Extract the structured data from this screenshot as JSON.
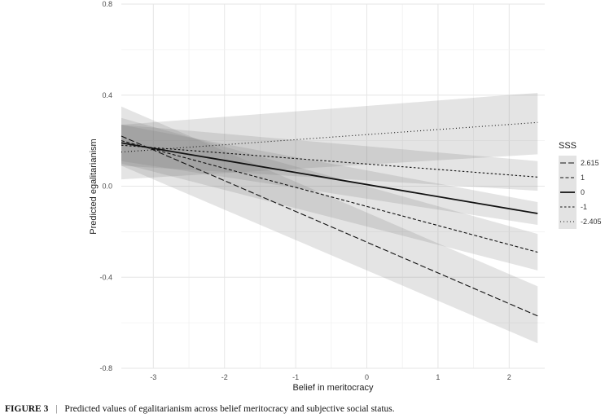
{
  "figure_caption": {
    "label": "FIGURE 3",
    "separator": "|",
    "text": "Predicted values of egalitarianism across belief meritocracy and subjective social status."
  },
  "chart_data": {
    "type": "line",
    "xlabel": "Belief in meritocracy",
    "ylabel": "Predicted egalitarianism",
    "xlim": [
      -3.45,
      2.5
    ],
    "ylim": [
      -0.8,
      0.8
    ],
    "x_ticks": [
      -3,
      -2,
      -1,
      0,
      1,
      2
    ],
    "x_tick_labels": [
      "-3",
      "-2",
      "-1",
      "0",
      "1",
      "2"
    ],
    "y_ticks": [
      -0.8,
      -0.4,
      0.0,
      0.4,
      0.8
    ],
    "y_tick_labels": [
      "-0.8",
      "-0.4",
      "0.0",
      "0.4",
      "0.8"
    ],
    "grid": true,
    "legend": {
      "title": "SSS",
      "placement": "right"
    },
    "x": [
      -3.45,
      2.4
    ],
    "series": [
      {
        "name": "2.615",
        "dash": "longdash",
        "values": [
          0.22,
          -0.57
        ],
        "ci_lower": [
          0.09,
          -0.69
        ],
        "ci_upper": [
          0.35,
          -0.44
        ]
      },
      {
        "name": "1",
        "dash": "dashed",
        "values": [
          0.2,
          -0.29
        ],
        "ci_lower": [
          0.1,
          -0.37
        ],
        "ci_upper": [
          0.3,
          -0.21
        ]
      },
      {
        "name": "0",
        "dash": "solid",
        "values": [
          0.19,
          -0.12
        ],
        "ci_lower": [
          0.11,
          -0.17
        ],
        "ci_upper": [
          0.27,
          -0.07
        ]
      },
      {
        "name": "-1",
        "dash": "shortdash",
        "values": [
          0.18,
          0.04
        ],
        "ci_lower": [
          0.09,
          -0.02
        ],
        "ci_upper": [
          0.27,
          0.11
        ]
      },
      {
        "name": "-2.405",
        "dash": "dotted",
        "values": [
          0.15,
          0.28
        ],
        "ci_lower": [
          0.03,
          0.14
        ],
        "ci_upper": [
          0.27,
          0.41
        ]
      }
    ]
  }
}
